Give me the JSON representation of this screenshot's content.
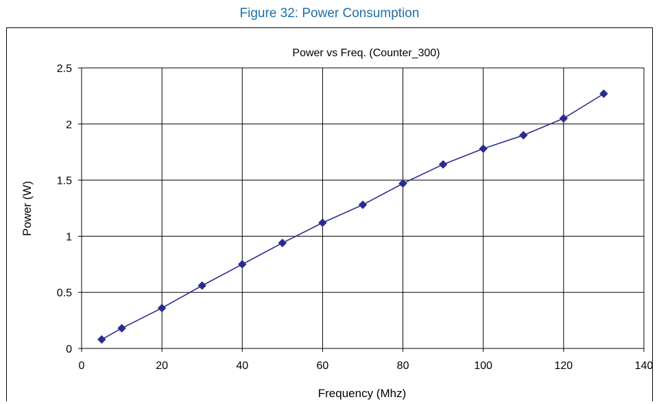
{
  "figure": {
    "caption": "Figure 32: Power Consumption"
  },
  "colors": {
    "caption": "#1b6fa8",
    "series": "#2b2b8f",
    "grid": "#000000"
  },
  "chart_data": {
    "type": "line",
    "title": "Power vs Freq. (Counter_300)",
    "xlabel": "Frequency (Mhz)",
    "ylabel": "Power (W)",
    "xlim": [
      0,
      140
    ],
    "ylim": [
      0,
      2.5
    ],
    "xticks": [
      0,
      20,
      40,
      60,
      80,
      100,
      120,
      140
    ],
    "yticks": [
      0,
      0.5,
      1,
      1.5,
      2,
      2.5
    ],
    "xtick_labels": [
      "0",
      "20",
      "40",
      "60",
      "80",
      "100",
      "120",
      "140"
    ],
    "ytick_labels": [
      "0",
      "0.5",
      "1",
      "1.5",
      "2",
      "2.5"
    ],
    "grid": true,
    "marker": "diamond",
    "series": [
      {
        "x": [
          5,
          10,
          20,
          30,
          40,
          50,
          60,
          70,
          80,
          90,
          100,
          110,
          120,
          130
        ],
        "y": [
          0.08,
          0.18,
          0.36,
          0.56,
          0.75,
          0.94,
          1.12,
          1.28,
          1.47,
          1.64,
          1.78,
          1.9,
          2.05,
          2.27
        ]
      }
    ]
  }
}
